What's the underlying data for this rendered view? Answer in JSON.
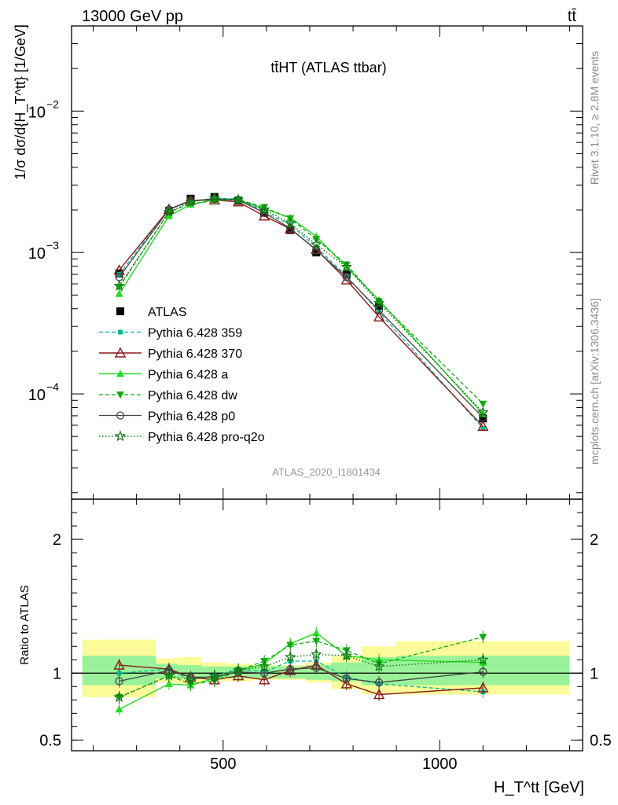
{
  "header": {
    "left": "13000 GeV pp",
    "right": "tt̄"
  },
  "side_labels": {
    "rivet": "Rivet 3.1.10, ≥ 2.8M events",
    "mcplots": "mcplots.cern.ch [arXiv:1306.3436]"
  },
  "colors": {
    "ATLAS": "#000000",
    "Pythia 6.428 359": "#00b894",
    "Pythia 6.428 370": "#8b1a1a",
    "Pythia 6.428 a": "#22dd22",
    "Pythia 6.428 dw": "#11aa11",
    "Pythia 6.428 p0": "#444444",
    "Pythia 6.428 pro-q2o": "#117711",
    "band_inner": "#99f299",
    "band_outer": "#fbfb99"
  },
  "chart_data": [
    {
      "type": "line",
      "title": "tt̄HT (ATLAS ttbar)",
      "analysis": "ATLAS_2020_I1801434",
      "ylabel": "1/σ dσ/d{H_T^tt} [1/GeV]",
      "yscale": "log",
      "ylim": [
        1.8e-05,
        0.04
      ],
      "xlim": [
        150,
        1330
      ],
      "yticks": [
        {
          "v": 0.0001,
          "label": "10"
        },
        {
          "v": 0.001,
          "label": "10"
        },
        {
          "v": 0.01,
          "label": "10"
        }
      ],
      "ytick_exponents": [
        "−4",
        "−3",
        "−2"
      ],
      "legend_position": "left",
      "x": [
        260,
        375,
        425,
        480,
        535,
        595,
        655,
        715,
        785,
        860,
        1100
      ],
      "series": [
        {
          "name": "ATLAS",
          "values": [
            0.00071,
            0.00197,
            0.0024,
            0.00247,
            0.00232,
            0.00191,
            0.00144,
            0.001,
            0.0007,
            0.00042,
            6.7e-05
          ]
        },
        {
          "name": "Pythia 6.428 359",
          "values": [
            0.0007,
            0.00204,
            0.00228,
            0.00242,
            0.00239,
            0.00194,
            0.00157,
            0.00109,
            0.00068,
            0.00038,
            5.7e-05
          ]
        },
        {
          "name": "Pythia 6.428 370",
          "values": [
            0.00075,
            0.00202,
            0.00233,
            0.00235,
            0.00228,
            0.00181,
            0.00147,
            0.00105,
            0.00064,
            0.00035,
            5.9e-05
          ]
        },
        {
          "name": "Pythia 6.428 a",
          "values": [
            0.00051,
            0.00181,
            0.00218,
            0.00236,
            0.00236,
            0.00204,
            0.00176,
            0.0013,
            0.00079,
            0.00046,
            7.2e-05
          ]
        },
        {
          "name": "Pythia 6.428 dw",
          "values": [
            0.00057,
            0.00193,
            0.00221,
            0.00232,
            0.00237,
            0.00209,
            0.00174,
            0.00124,
            0.00082,
            0.00045,
            8.5e-05
          ]
        },
        {
          "name": "Pythia 6.428 p0",
          "values": [
            0.00067,
            0.00201,
            0.00233,
            0.00239,
            0.00235,
            0.00191,
            0.00148,
            0.00104,
            0.00067,
            0.00039,
            6.8e-05
          ]
        },
        {
          "name": "Pythia 6.428 pro-q2o",
          "values": [
            0.00058,
            0.00193,
            0.00228,
            0.00242,
            0.00236,
            0.00201,
            0.00161,
            0.00114,
            0.00079,
            0.00044,
            7.4e-05
          ]
        }
      ]
    },
    {
      "type": "line",
      "ylabel": "Ratio to ATLAS",
      "xlabel": "H_T^tt [GeV]",
      "xlim": [
        150,
        1330
      ],
      "ylim": [
        0.42,
        2.3
      ],
      "xticks": [
        500,
        1000
      ],
      "yticks": [
        {
          "v": 0.5,
          "label": "0.5"
        },
        {
          "v": 1,
          "label": "1"
        },
        {
          "v": 2,
          "label": "2"
        }
      ],
      "bands": [
        {
          "x0": 175,
          "x1": 345,
          "inner": [
            0.91,
            1.13
          ],
          "outer": [
            0.82,
            1.25
          ]
        },
        {
          "x0": 345,
          "x1": 395,
          "inner": [
            0.96,
            1.07
          ],
          "outer": [
            0.93,
            1.11
          ]
        },
        {
          "x0": 395,
          "x1": 450,
          "inner": [
            0.96,
            1.06
          ],
          "outer": [
            0.92,
            1.12
          ]
        },
        {
          "x0": 450,
          "x1": 510,
          "inner": [
            0.96,
            1.05
          ],
          "outer": [
            0.94,
            1.08
          ]
        },
        {
          "x0": 510,
          "x1": 565,
          "inner": [
            0.96,
            1.05
          ],
          "outer": [
            0.94,
            1.07
          ]
        },
        {
          "x0": 565,
          "x1": 625,
          "inner": [
            0.96,
            1.05
          ],
          "outer": [
            0.95,
            1.06
          ]
        },
        {
          "x0": 625,
          "x1": 690,
          "inner": [
            0.96,
            1.05
          ],
          "outer": [
            0.95,
            1.06
          ]
        },
        {
          "x0": 690,
          "x1": 750,
          "inner": [
            0.95,
            1.06
          ],
          "outer": [
            0.93,
            1.08
          ]
        },
        {
          "x0": 750,
          "x1": 820,
          "inner": [
            0.94,
            1.08
          ],
          "outer": [
            0.88,
            1.13
          ]
        },
        {
          "x0": 820,
          "x1": 900,
          "inner": [
            0.91,
            1.12
          ],
          "outer": [
            0.84,
            1.2
          ]
        },
        {
          "x0": 900,
          "x1": 1300,
          "inner": [
            0.91,
            1.13
          ],
          "outer": [
            0.84,
            1.24
          ]
        }
      ],
      "series": [
        {
          "name": "Pythia 6.428 359",
          "values": [
            1.0,
            1.03,
            0.95,
            0.98,
            1.03,
            1.01,
            1.09,
            1.09,
            0.97,
            0.92,
            0.86
          ]
        },
        {
          "name": "Pythia 6.428 370",
          "values": [
            1.06,
            1.03,
            0.97,
            0.95,
            0.98,
            0.95,
            1.02,
            1.06,
            0.92,
            0.84,
            0.89
          ]
        },
        {
          "name": "Pythia 6.428 a",
          "values": [
            0.73,
            0.92,
            0.91,
            0.96,
            1.02,
            1.07,
            1.22,
            1.3,
            1.13,
            1.1,
            1.08
          ]
        },
        {
          "name": "Pythia 6.428 dw",
          "values": [
            0.82,
            0.98,
            0.92,
            0.94,
            1.02,
            1.09,
            1.21,
            1.24,
            1.17,
            1.07,
            1.27
          ]
        },
        {
          "name": "Pythia 6.428 p0",
          "values": [
            0.94,
            1.02,
            0.97,
            0.97,
            1.01,
            1.0,
            1.03,
            1.04,
            0.96,
            0.93,
            1.01
          ]
        },
        {
          "name": "Pythia 6.428 pro-q2o",
          "values": [
            0.82,
            0.98,
            0.95,
            0.98,
            1.02,
            1.05,
            1.12,
            1.14,
            1.13,
            1.05,
            1.1
          ]
        }
      ]
    }
  ]
}
